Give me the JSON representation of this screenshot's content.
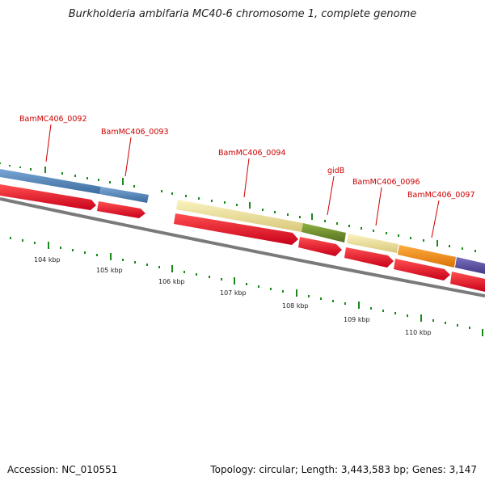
{
  "header": {
    "title": "Burkholderia ambifaria MC40-6 chromosome 1, complete genome"
  },
  "footer": {
    "accession": "Accession: NC_010551",
    "summary": "Topology: circular; Length: 3,443,583 bp; Genes: 3,147"
  },
  "colors": {
    "cds": "#e8001e",
    "gene_blue": "#4a7fb5",
    "gene_yellow": "#f0e49a",
    "gene_green": "#6a8c2a",
    "gene_orange": "#f08a10",
    "gene_purple": "#5a4fa0",
    "ticks": "#1a8a1a",
    "axis": "#808080",
    "label": "#cc0000"
  },
  "gene_labels": [
    "BamMC406_0092",
    "BamMC406_0093",
    "BamMC406_0094",
    "gidB",
    "BamMC406_0096",
    "BamMC406_0097"
  ],
  "scale_labels": [
    "104 kbp",
    "105 kbp",
    "106 kbp",
    "107 kbp",
    "108 kbp",
    "109 kbp",
    "110 kbp"
  ]
}
